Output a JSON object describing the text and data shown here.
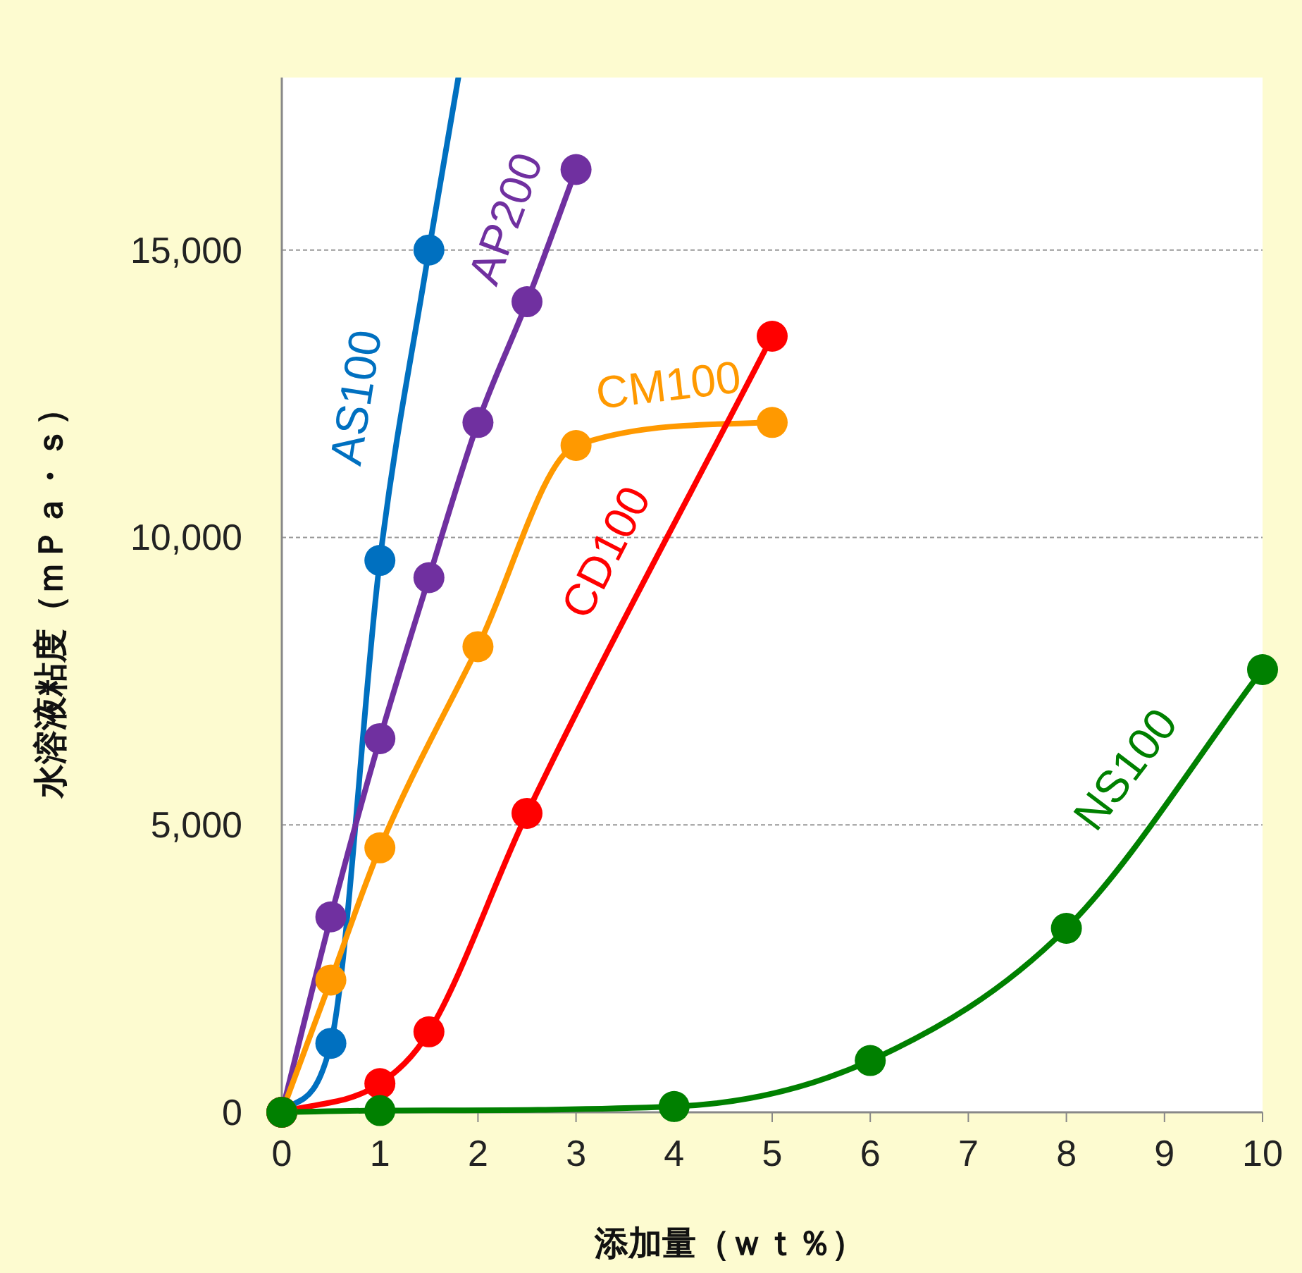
{
  "chart_data": {
    "type": "line",
    "xlabel": "添加量（ｗｔ％）",
    "ylabel": "水溶液粘度（ｍＰａ・ｓ）",
    "xlim": [
      0,
      10
    ],
    "xticks": [
      0,
      1,
      2,
      3,
      4,
      5,
      6,
      7,
      8,
      9,
      10
    ],
    "ylim": [
      0,
      18000
    ],
    "yticks": [
      {
        "value": 0,
        "label": "0"
      },
      {
        "value": 5000,
        "label": "5,000"
      },
      {
        "value": 10000,
        "label": "10,000"
      },
      {
        "value": 15000,
        "label": "15,000"
      }
    ],
    "grid": "y",
    "marker": "circle",
    "line_style": "solid",
    "series": [
      {
        "name": "AS100",
        "color": "#0070c0",
        "x": [
          0,
          0.5,
          1,
          1.5
        ],
        "values": [
          0,
          1200,
          9600,
          15000
        ]
      },
      {
        "color": "#0070c0",
        "x": [
          1.5,
          1.8
        ],
        "values": [
          15000,
          18000
        ],
        "marker": "none"
      },
      {
        "name": "AP200",
        "color": "#7030a0",
        "x": [
          0,
          0.5,
          1,
          1.5,
          2,
          2.5,
          3
        ],
        "values": [
          0,
          3400,
          6500,
          9300,
          12000,
          14100,
          16400
        ]
      },
      {
        "name": "CM100",
        "color": "#ff9900",
        "x": [
          0,
          0.5,
          1,
          2,
          3,
          5
        ],
        "values": [
          0,
          2300,
          4600,
          8100,
          11600,
          12000
        ]
      },
      {
        "name": "CD100",
        "color": "#ff0000",
        "x": [
          0,
          1,
          1.5,
          2.5,
          5
        ],
        "values": [
          0,
          500,
          1400,
          5200,
          13500
        ]
      },
      {
        "name": "NS100",
        "color": "#008000",
        "x": [
          0,
          1,
          4,
          6,
          8,
          10
        ],
        "values": [
          0,
          30,
          100,
          900,
          3200,
          7700
        ]
      }
    ]
  }
}
